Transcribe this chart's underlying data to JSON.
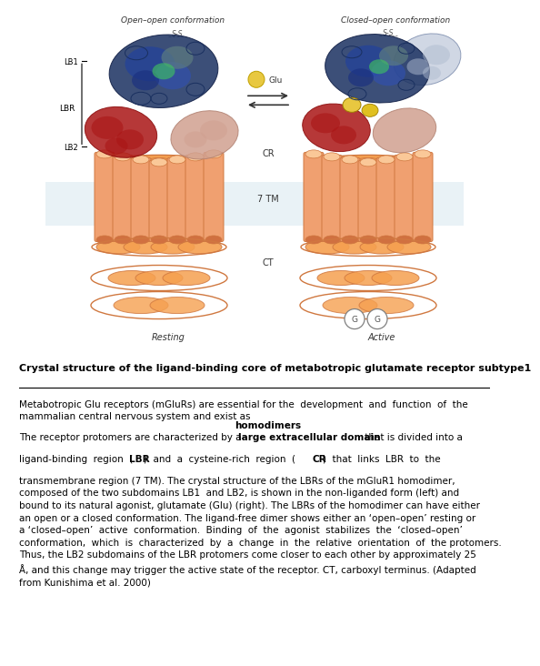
{
  "title": "Crystal structure of the ligand-binding core of metabotropic glutamate receptor subtype1",
  "p1_normal": "Metabotropic Glu receptors (mGluRs) are essential for the development and function of the\nmammalian central nervous system and exist as ",
  "p1_bold": "homodimers",
  "p1_end": ".",
  "p2_line1_pre": "The receptor protomers are characterized by a ",
  "p2_line1_bold": "large extracellular domain",
  "p2_line1_post": " that is divided into a",
  "p2_line2_pre": "ligand-binding region (",
  "p2_line2_bold1": "LBR",
  "p2_line2_mid": ")  and  a  cysteine-rich  region  (",
  "p2_line2_bold2": "CR",
  "p2_line2_post": ")  that  links  LBR  to  the",
  "p2_rest": "transmembrane region (7 TM). The crystal structure of the LBRs of the mGluR1 homodimer,\ncomposed of the two subdomains LB1  and LB2, is shown in the non-liganded form (left) and\nbound to its natural agonist, glutamate (Glu) (right). The LBRs of the homodimer can have either\nan open or a closed conformation. The ligand-free dimer shows either an ‘open–open’ resting or\na ‘closed–open’ active  conformation.  Binding  of  the  agonist  stabilizes  the  ‘closed–open’\nconformation,  which  is  characterized  by  a  change  in  the  relative  orientation  of  the protomers.\nThus, the LB2 subdomains of the LBR protomers come closer to each other by approximately 25\nÅ, and this change may trigger the active state of the receptor. CT, carboxyl terminus. (Adapted\nfrom Kunishima et al. 2000)",
  "bg_color": "#ffffff",
  "text_color": "#000000",
  "fig_width": 5.4,
  "fig_height": 7.2,
  "label_open": "Open–open conformation",
  "label_closed": "Closed–open conformation",
  "label_glu": "Glu",
  "label_cr": "CR",
  "label_7tm": "7 TM",
  "label_ct": "CT",
  "label_resting": "Resting",
  "label_active": "Active",
  "label_lb1": "LB1",
  "label_lbr": "LBR",
  "label_lb2": "LB2",
  "label_ss": "S-S",
  "membrane_color": "#d8e8f0",
  "helix_color": "#f0a070",
  "helix_edge": "#d07840",
  "loop_color": "#f5a050",
  "navy_color": "#1a3060",
  "navy_light": "#4060a0",
  "red_color": "#aa1515",
  "pink_color": "#d0a090",
  "yellow_color": "#e8c840",
  "white_color": "#ffffff"
}
